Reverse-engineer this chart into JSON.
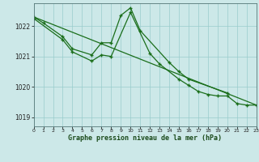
{
  "title": "Graphe pression niveau de la mer (hPa)",
  "background_color": "#cce8e8",
  "grid_color": "#99cccc",
  "line_color": "#1a6e1a",
  "xlim": [
    0,
    23
  ],
  "ylim": [
    1018.7,
    1022.75
  ],
  "yticks": [
    1019,
    1020,
    1021,
    1022
  ],
  "xticks": [
    0,
    1,
    2,
    3,
    4,
    5,
    6,
    7,
    8,
    9,
    10,
    11,
    12,
    13,
    14,
    15,
    16,
    17,
    18,
    19,
    20,
    21,
    22,
    23
  ],
  "line1_x": [
    0,
    1,
    3,
    4,
    6,
    7,
    8,
    9,
    10,
    11,
    14,
    15,
    16,
    20
  ],
  "line1_y": [
    1022.3,
    1022.1,
    1021.65,
    1021.25,
    1021.05,
    1021.45,
    1021.45,
    1022.35,
    1022.6,
    1021.85,
    1020.8,
    1020.5,
    1020.25,
    1019.8
  ],
  "line2_x": [
    0,
    3,
    4,
    6,
    7,
    8,
    10,
    12,
    13,
    15,
    16,
    17,
    18,
    19,
    20,
    21,
    22,
    23
  ],
  "line2_y": [
    1022.25,
    1021.55,
    1021.15,
    1020.85,
    1021.05,
    1021.0,
    1022.45,
    1021.1,
    1020.75,
    1020.25,
    1020.05,
    1019.85,
    1019.75,
    1019.7,
    1019.7,
    1019.45,
    1019.4,
    1019.4
  ],
  "line3_x": [
    0,
    23
  ],
  "line3_y": [
    1022.3,
    1019.4
  ]
}
